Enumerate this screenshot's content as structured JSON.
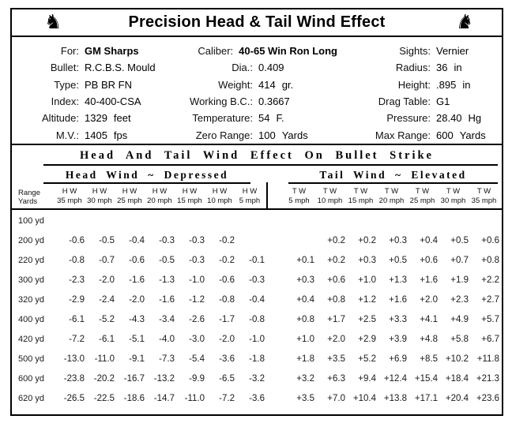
{
  "title": "Precision Head & Tail Wind Effect",
  "icons": {
    "left": "knight-chess-piece",
    "right": "knight-chess-piece-mirrored",
    "glyph": "♞"
  },
  "info": {
    "left": [
      {
        "label": "For:",
        "value": "GM Sharps",
        "unit": ""
      },
      {
        "label": "Bullet:",
        "value": "R.C.B.S. Mould",
        "unit": ""
      },
      {
        "label": "Type:",
        "value": "PB BR FN",
        "unit": ""
      },
      {
        "label": "Index:",
        "value": "40-400-CSA",
        "unit": ""
      },
      {
        "label": "Altitude:",
        "value": "1329",
        "unit": "feet"
      },
      {
        "label": "M.V.:",
        "value": "1405",
        "unit": "fps"
      }
    ],
    "middle": [
      {
        "label": "Caliber:",
        "value": "40-65 Win Ron Long",
        "unit": ""
      },
      {
        "label": "Dia.:",
        "value": "0.409",
        "unit": ""
      },
      {
        "label": "Weight:",
        "value": "414",
        "unit": "gr."
      },
      {
        "label": "Working B.C.:",
        "value": "0.3667",
        "unit": ""
      },
      {
        "label": "Temperature:",
        "value": "54",
        "unit": "F."
      },
      {
        "label": "Zero Range:",
        "value": "100",
        "unit": "Yards"
      }
    ],
    "right": [
      {
        "label": "Sights:",
        "value": "Vernier",
        "unit": ""
      },
      {
        "label": "Radius:",
        "value": "36",
        "unit": "in"
      },
      {
        "label": "Height:",
        "value": ".895",
        "unit": "in"
      },
      {
        "label": "Drag Table:",
        "value": "G1",
        "unit": ""
      },
      {
        "label": "Pressure:",
        "value": "28.40",
        "unit": "Hg"
      },
      {
        "label": "Max Range:",
        "value": "600",
        "unit": "Yards"
      }
    ]
  },
  "table": {
    "heading": "Head And Tail Wind Effect On Bullet Strike",
    "left_group_title": "Head Wind ~ Depressed",
    "right_group_title": "Tail Wind ~ Elevated",
    "range_header": {
      "line1": "Range",
      "line2": "Yards"
    },
    "hw_headers": [
      {
        "wind": "H W",
        "speed": "35 mph"
      },
      {
        "wind": "H W",
        "speed": "30 mph"
      },
      {
        "wind": "H W",
        "speed": "25 mph"
      },
      {
        "wind": "H W",
        "speed": "20 mph"
      },
      {
        "wind": "H W",
        "speed": "15 mph"
      },
      {
        "wind": "H W",
        "speed": "10 mph"
      },
      {
        "wind": "H W",
        "speed": "5 mph"
      }
    ],
    "tw_headers": [
      {
        "wind": "T W",
        "speed": "5 mph"
      },
      {
        "wind": "T W",
        "speed": "10 mph"
      },
      {
        "wind": "T W",
        "speed": "15 mph"
      },
      {
        "wind": "T W",
        "speed": "20 mph"
      },
      {
        "wind": "T W",
        "speed": "25 mph"
      },
      {
        "wind": "T W",
        "speed": "30 mph"
      },
      {
        "wind": "T W",
        "speed": "35 mph"
      }
    ],
    "rows": [
      {
        "range": "100 yd",
        "hw": [
          "",
          "",
          "",
          "",
          "",
          "",
          ""
        ],
        "tw": [
          "",
          "",
          "",
          "",
          "",
          "",
          ""
        ]
      },
      {
        "range": "200 yd",
        "hw": [
          "-0.6",
          "-0.5",
          "-0.4",
          "-0.3",
          "-0.3",
          "-0.2",
          ""
        ],
        "tw": [
          "",
          "+0.2",
          "+0.2",
          "+0.3",
          "+0.4",
          "+0.5",
          "+0.6"
        ]
      },
      {
        "range": "220 yd",
        "hw": [
          "-0.8",
          "-0.7",
          "-0.6",
          "-0.5",
          "-0.3",
          "-0.2",
          "-0.1"
        ],
        "tw": [
          "+0.1",
          "+0.2",
          "+0.3",
          "+0.5",
          "+0.6",
          "+0.7",
          "+0.8"
        ]
      },
      {
        "range": "300 yd",
        "hw": [
          "-2.3",
          "-2.0",
          "-1.6",
          "-1.3",
          "-1.0",
          "-0.6",
          "-0.3"
        ],
        "tw": [
          "+0.3",
          "+0.6",
          "+1.0",
          "+1.3",
          "+1.6",
          "+1.9",
          "+2.2"
        ]
      },
      {
        "range": "320 yd",
        "hw": [
          "-2.9",
          "-2.4",
          "-2.0",
          "-1.6",
          "-1.2",
          "-0.8",
          "-0.4"
        ],
        "tw": [
          "+0.4",
          "+0.8",
          "+1.2",
          "+1.6",
          "+2.0",
          "+2.3",
          "+2.7"
        ]
      },
      {
        "range": "400 yd",
        "hw": [
          "-6.1",
          "-5.2",
          "-4.3",
          "-3.4",
          "-2.6",
          "-1.7",
          "-0.8"
        ],
        "tw": [
          "+0.8",
          "+1.7",
          "+2.5",
          "+3.3",
          "+4.1",
          "+4.9",
          "+5.7"
        ]
      },
      {
        "range": "420 yd",
        "hw": [
          "-7.2",
          "-6.1",
          "-5.1",
          "-4.0",
          "-3.0",
          "-2.0",
          "-1.0"
        ],
        "tw": [
          "+1.0",
          "+2.0",
          "+2.9",
          "+3.9",
          "+4.8",
          "+5.8",
          "+6.7"
        ]
      },
      {
        "range": "500 yd",
        "hw": [
          "-13.0",
          "-11.0",
          "-9.1",
          "-7.3",
          "-5.4",
          "-3.6",
          "-1.8"
        ],
        "tw": [
          "+1.8",
          "+3.5",
          "+5.2",
          "+6.9",
          "+8.5",
          "+10.2",
          "+11.8"
        ]
      },
      {
        "range": "600 yd",
        "hw": [
          "-23.8",
          "-20.2",
          "-16.7",
          "-13.2",
          "-9.9",
          "-6.5",
          "-3.2"
        ],
        "tw": [
          "+3.2",
          "+6.3",
          "+9.4",
          "+12.4",
          "+15.4",
          "+18.4",
          "+21.3"
        ]
      },
      {
        "range": "620 yd",
        "hw": [
          "-26.5",
          "-22.5",
          "-18.6",
          "-14.7",
          "-11.0",
          "-7.2",
          "-3.6"
        ],
        "tw": [
          "+3.5",
          "+7.0",
          "+10.4",
          "+13.8",
          "+17.1",
          "+20.4",
          "+23.6"
        ]
      }
    ]
  }
}
